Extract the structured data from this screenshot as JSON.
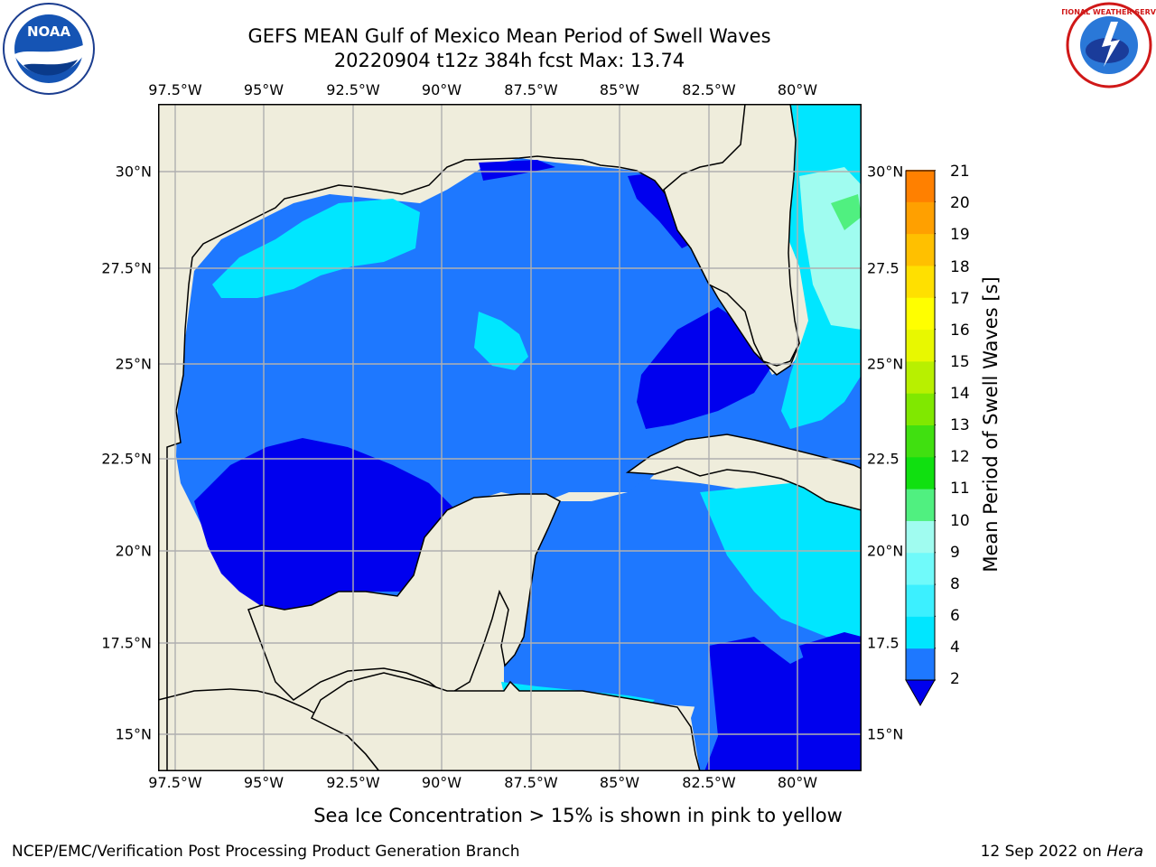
{
  "header": {
    "title_line1": "GEFS MEAN Gulf of Mexico Mean Period of Swell Waves",
    "title_line2": "20220904 t12z 384h fcst   Max: 13.74"
  },
  "logos": {
    "left": {
      "icon": "noaa-logo",
      "text": "NOAA"
    },
    "right": {
      "icon": "nws-logo",
      "text": "NATIONAL WEATHER SERVICE"
    }
  },
  "map": {
    "lon_labels": [
      "97.5°W",
      "95°W",
      "92.5°W",
      "90°W",
      "87.5°W",
      "85°W",
      "82.5°W",
      "80°W"
    ],
    "lat_labels": [
      "30°N",
      "27.5°N",
      "25°N",
      "22.5°N",
      "20°N",
      "17.5°N",
      "15°N"
    ],
    "lat_labels_right": [
      "30°N",
      "27.5",
      "25°N",
      "22.5",
      "20°N",
      "17.5",
      "15°N"
    ],
    "lon_range": [
      -98,
      -79
    ],
    "lat_range": [
      14,
      31.7
    ],
    "colors": {
      "land": "#efeddc",
      "ocean_dark": "#0000ee",
      "ocean_mid": "#1e78ff",
      "ocean_light": "#00e6ff",
      "ice": "#80e830"
    }
  },
  "colorbar": {
    "label": "Mean Period of Swell Waves [s]",
    "tick_labels": [
      "2",
      "4",
      "6",
      "8",
      "9",
      "10",
      "11",
      "12",
      "13",
      "14",
      "15",
      "16",
      "17",
      "18",
      "19",
      "20",
      "21"
    ],
    "colors": [
      "#1e78ff",
      "#00e6ff",
      "#3cf0ff",
      "#70fafa",
      "#a0fcf0",
      "#50f080",
      "#10e010",
      "#40e010",
      "#80e800",
      "#b8f000",
      "#e8f800",
      "#ffff00",
      "#ffe000",
      "#ffc000",
      "#ffa000",
      "#ff8000",
      "#ff5000",
      "#ff2800",
      "#ff0000"
    ],
    "extend_color": "#0000ee"
  },
  "annotation": "Sea Ice Concentration > 15% is shown in pink to yellow",
  "footer": {
    "left": "NCEP/EMC/Verification Post Processing Product Generation Branch",
    "right_prefix": "12 Sep 2022 on ",
    "right_host": "Hera"
  }
}
